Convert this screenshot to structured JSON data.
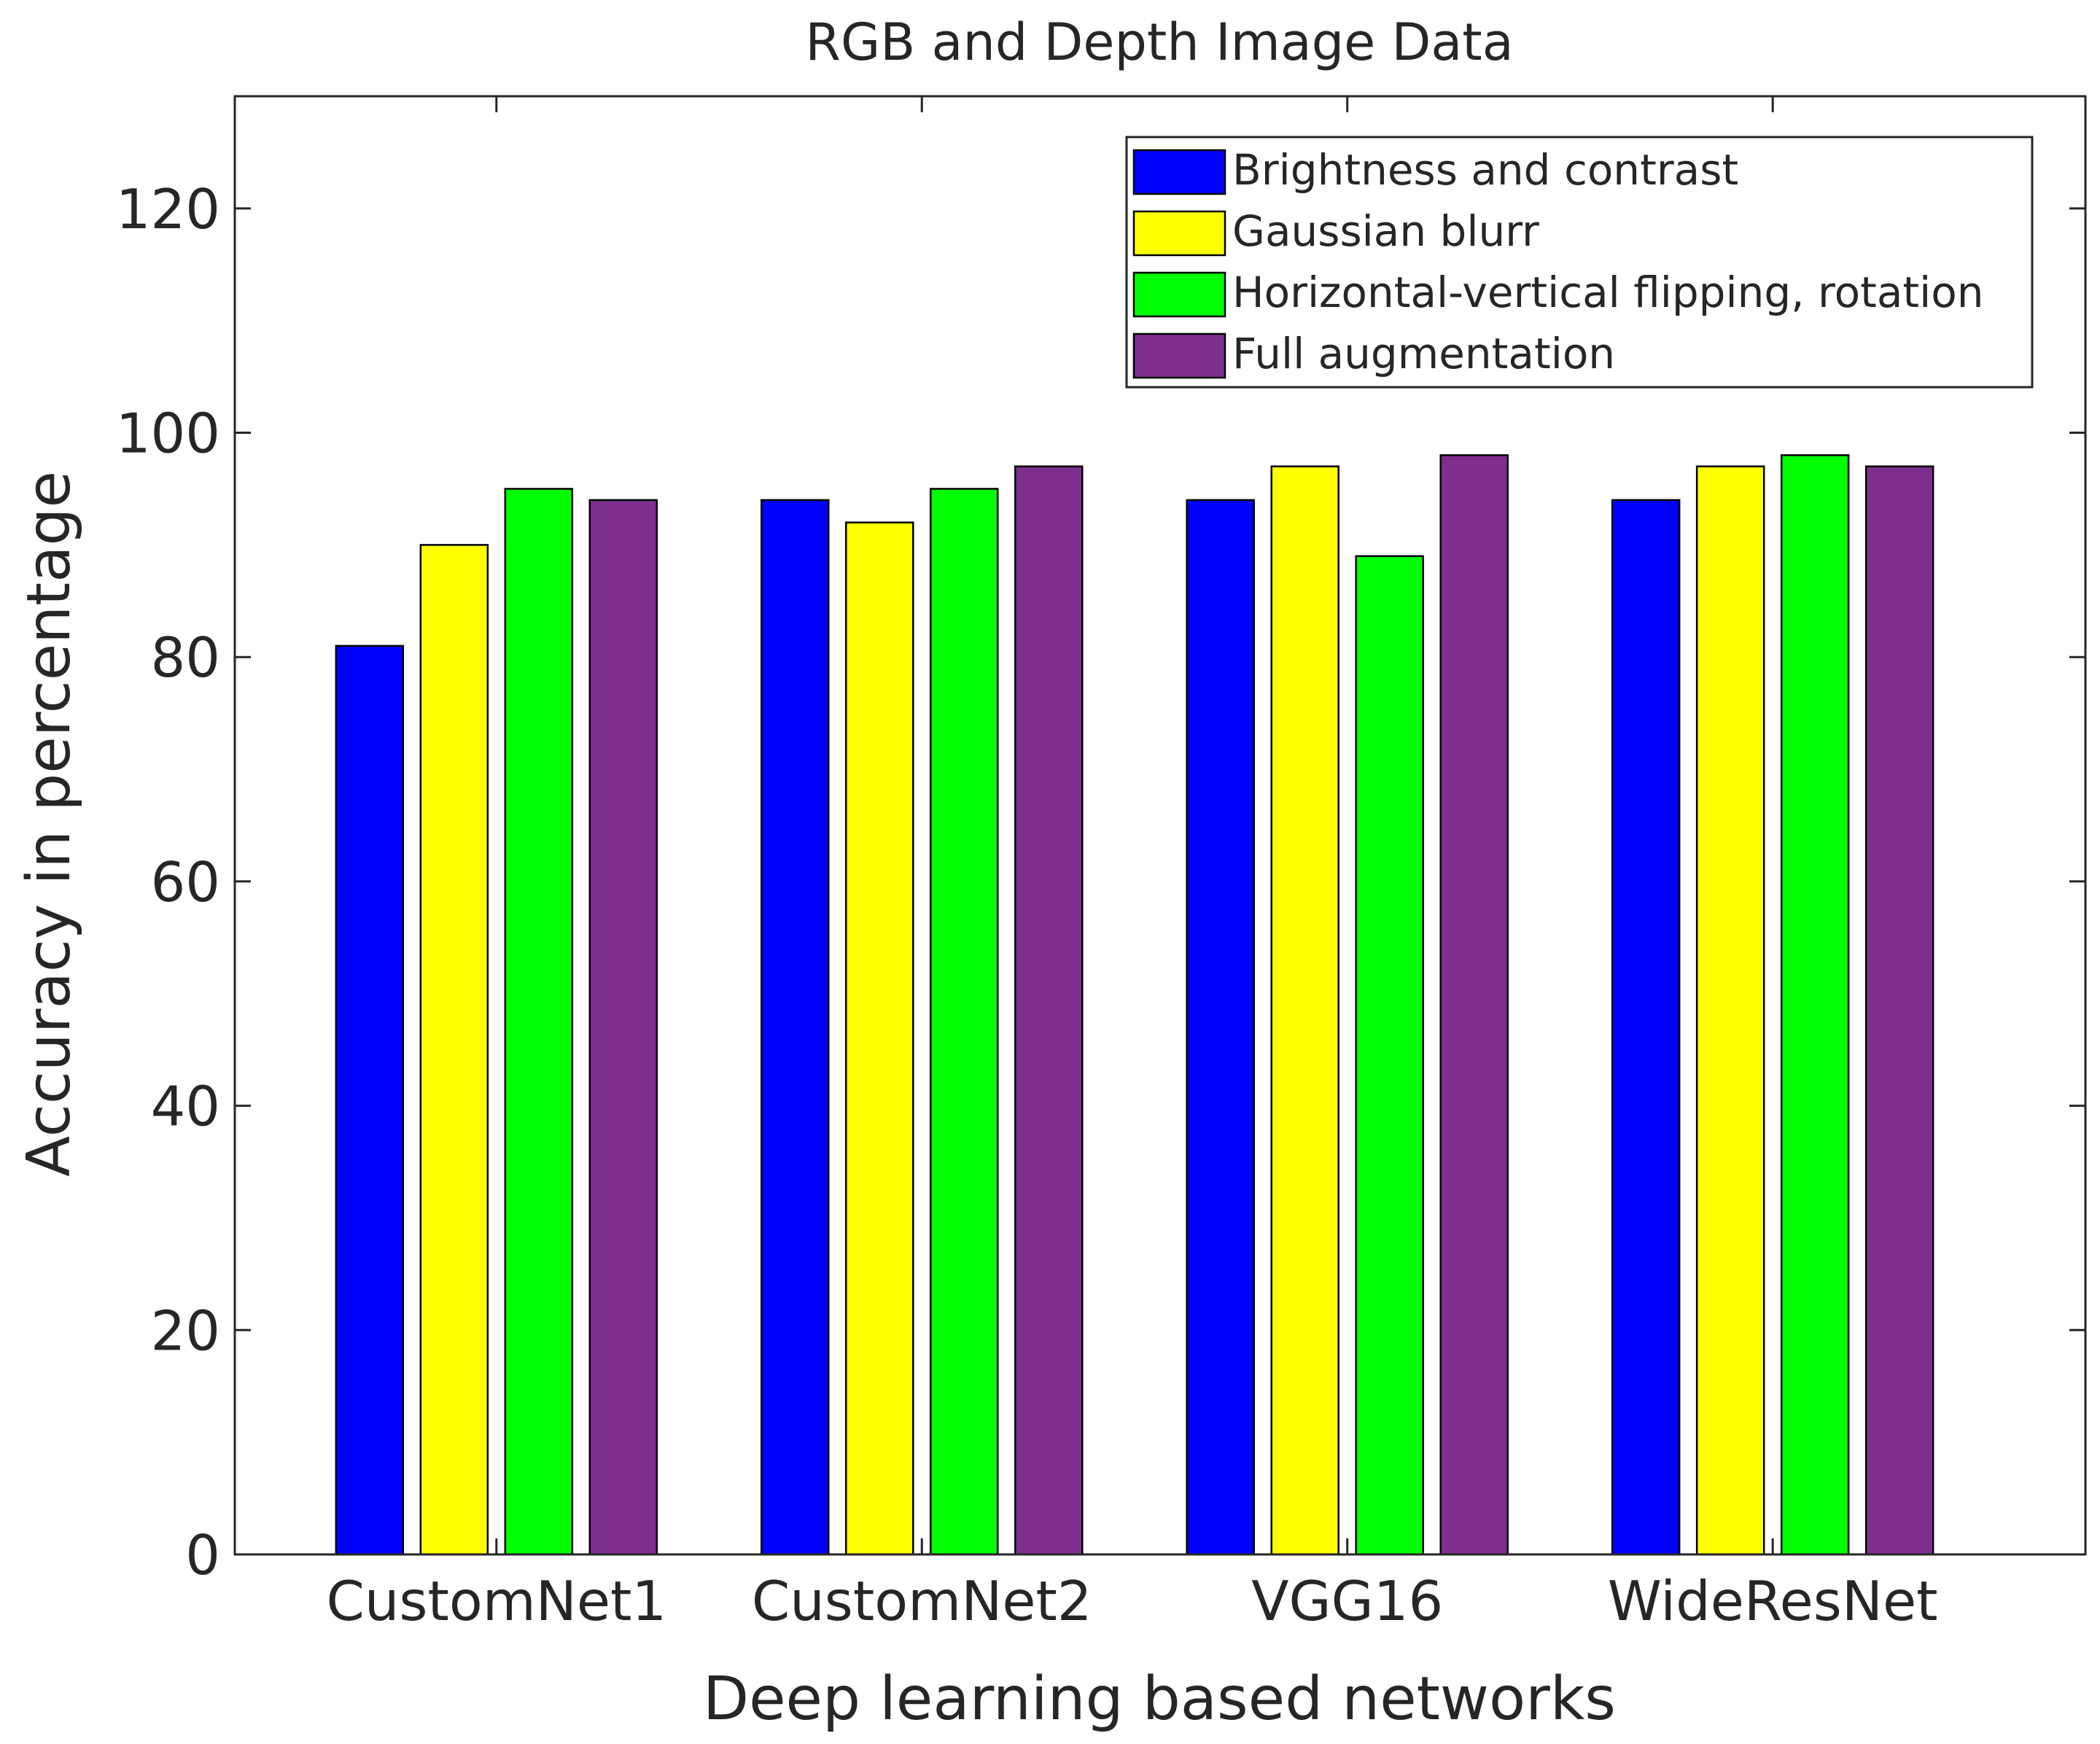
{
  "chart_data": {
    "type": "bar",
    "title": "RGB and Depth Image Data",
    "xlabel": "Deep learning based networks",
    "ylabel": "Accuracy in percentage",
    "categories": [
      "CustomNet1",
      "CustomNet2",
      "VGG16",
      "WideResNet"
    ],
    "ylim": [
      0,
      130
    ],
    "yticks": [
      0,
      20,
      40,
      60,
      80,
      100,
      120
    ],
    "grid": false,
    "legend_position": "top-right",
    "series": [
      {
        "name": "Brightness and contrast",
        "color": "#0000ff",
        "values": [
          81,
          94,
          94,
          94
        ]
      },
      {
        "name": "Gaussian blurr",
        "color": "#ffff00",
        "values": [
          90,
          92,
          97,
          97
        ]
      },
      {
        "name": "Horizontal-vertical flipping, rotation",
        "color": "#00ff00",
        "values": [
          95,
          95,
          89,
          98
        ]
      },
      {
        "name": "Full augmentation",
        "color": "#7e2f8e",
        "values": [
          94,
          97,
          98,
          97
        ]
      }
    ]
  }
}
